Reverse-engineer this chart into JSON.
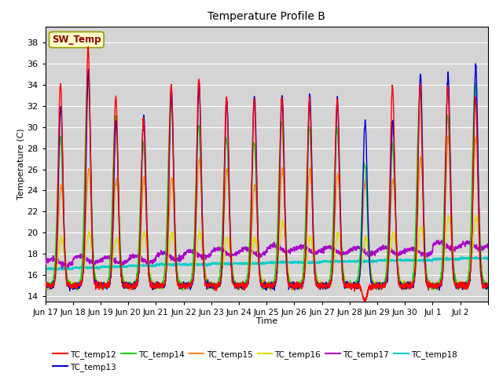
{
  "title": "Temperature Profile B",
  "xlabel": "Time",
  "ylabel": "Temperature (C)",
  "ylim": [
    14,
    38.5
  ],
  "yticks": [
    14,
    16,
    18,
    20,
    22,
    24,
    26,
    28,
    30,
    32,
    34,
    36,
    38
  ],
  "background_color": "#d8d8d8",
  "sw_temp_label": "SW_Temp",
  "sw_temp_box_color": "#ffffcc",
  "sw_temp_text_color": "#8b0000",
  "series_colors": {
    "TC_temp12": "#ff0000",
    "TC_temp13": "#0000dd",
    "TC_temp14": "#00dd00",
    "TC_temp15": "#ff8800",
    "TC_temp16": "#dddd00",
    "TC_temp17": "#aa00cc",
    "TC_temp18": "#00cccc"
  },
  "x_tick_labels": [
    "Jun 17",
    "Jun 18",
    "Jun 19",
    "Jun 20",
    "Jun 21",
    "Jun 22",
    "Jun 23",
    "Jun 24",
    "Jun 25",
    "Jun 26",
    "Jun 27",
    "Jun 28",
    "Jun 29",
    "Jun 30",
    "Jul 1",
    "Jul 2"
  ],
  "num_days": 16
}
